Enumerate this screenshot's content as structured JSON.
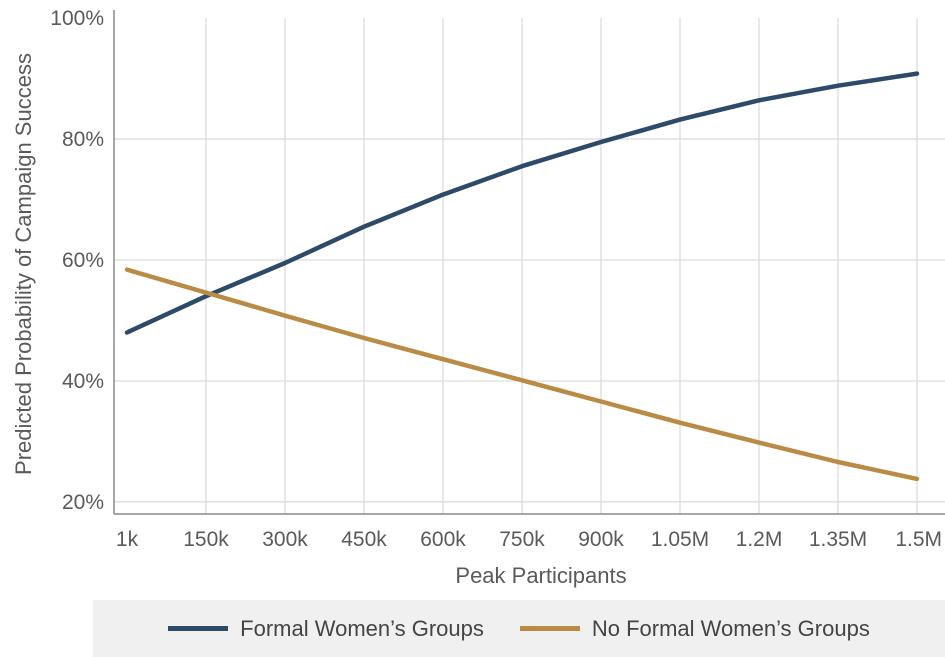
{
  "chart_data": {
    "type": "line",
    "xlabel": "Peak Participants",
    "ylabel": "Predicted Probability of Campaign Success",
    "x_tick_labels": [
      "1k",
      "150k",
      "300k",
      "450k",
      "600k",
      "750k",
      "900k",
      "1.05M",
      "1.2M",
      "1.35M",
      "1.5M"
    ],
    "y_tick_labels": [
      "20%",
      "40%",
      "60%",
      "80%",
      "100%"
    ],
    "y_ticks": [
      20,
      40,
      60,
      80,
      100
    ],
    "ylim": [
      18,
      100
    ],
    "grid": true,
    "legend_position": "bottom",
    "series": [
      {
        "name": "Formal Women’s Groups",
        "color": "#2d4b68",
        "values": [
          48,
          54,
          59.5,
          65.5,
          70.8,
          75.5,
          79.5,
          83.2,
          86.4,
          88.8,
          90.8
        ]
      },
      {
        "name": "No Formal Women’s Groups",
        "color": "#b98b45",
        "values": [
          58.4,
          54.6,
          50.8,
          47.1,
          43.6,
          40.1,
          36.6,
          33.1,
          29.8,
          26.6,
          23.8
        ]
      }
    ]
  },
  "legend": {
    "items": [
      {
        "label": "Formal Women’s Groups",
        "color": "#2d4b68"
      },
      {
        "label": "No Formal Women’s Groups",
        "color": "#b98b45"
      }
    ]
  }
}
